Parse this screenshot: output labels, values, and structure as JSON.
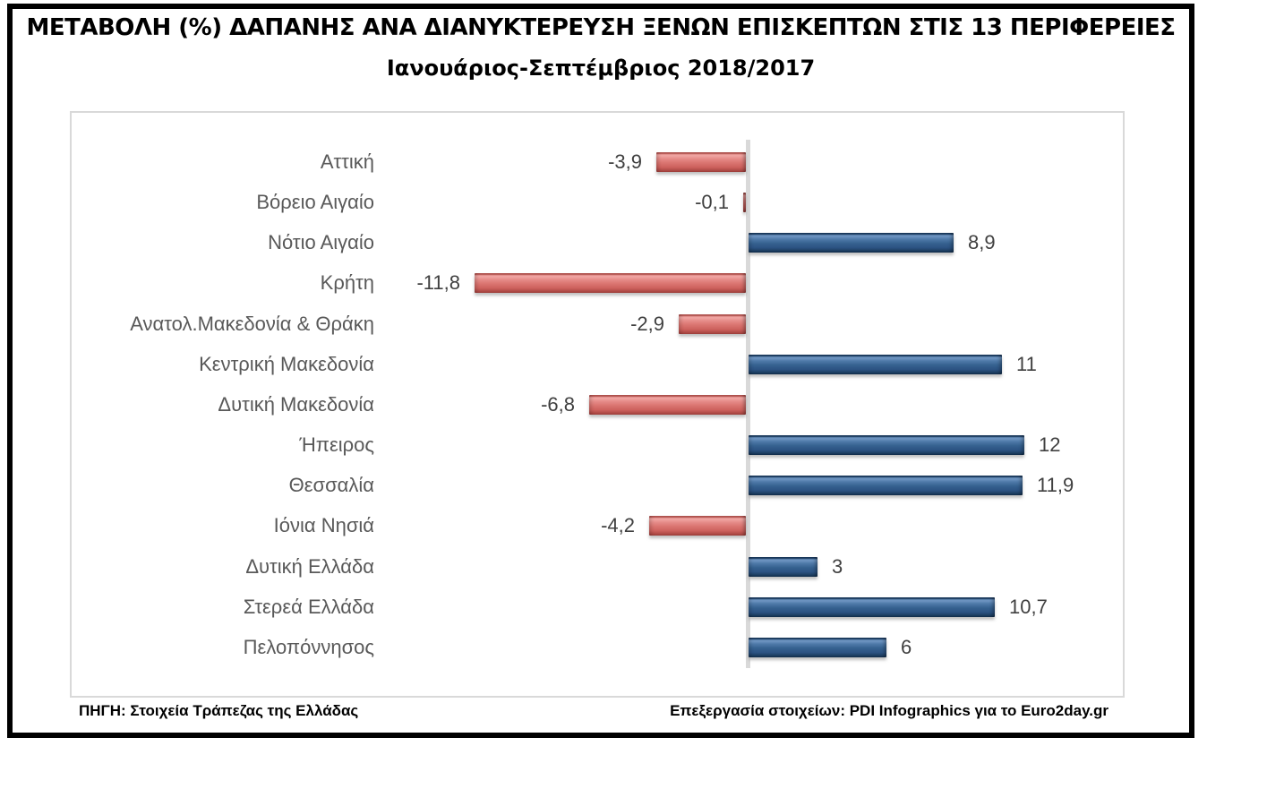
{
  "header": {
    "title": "ΜΕΤΑΒΟΛΗ (%) ΔΑΠΑΝΗΣ ΑΝΑ ΔΙΑΝΥΚΤΕΡΕΥΣΗ ΞΕΝΩΝ ΕΠΙΣΚΕΠΤΩΝ ΣΤΙΣ 13 ΠΕΡΙΦΕΡΕΙΕΣ",
    "subtitle": "Ιανουάριος-Σεπτέμβριος 2018/2017"
  },
  "chart_data": {
    "type": "bar",
    "orientation": "horizontal",
    "title": "ΜΕΤΑΒΟΛΗ (%) ΔΑΠΑΝΗΣ ΑΝΑ ΔΙΑΝΥΚΤΕΡΕΥΣΗ ΞΕΝΩΝ ΕΠΙΣΚΕΠΤΩΝ ΣΤΙΣ 13 ΠΕΡΙΦΕΡΕΙΕΣ",
    "subtitle": "Ιανουάριος-Σεπτέμβριος 2018/2017",
    "categories": [
      "Αττική",
      "Βόρειο Αιγαίο",
      "Νότιο Αιγαίο",
      "Κρήτη",
      "Ανατολ.Μακεδονία & Θράκη",
      "Κεντρική Μακεδονία",
      "Δυτική Μακεδονία",
      "Ήπειρος",
      "Θεσσαλία",
      "Ιόνια Νησιά",
      "Δυτική Ελλάδα",
      "Στερεά Ελλάδα",
      "Πελοπόννησος"
    ],
    "values": [
      -3.9,
      -0.1,
      8.9,
      -11.8,
      -2.9,
      11,
      -6.8,
      12,
      11.9,
      -4.2,
      3,
      10.7,
      6
    ],
    "value_labels": [
      "-3,9",
      "-0,1",
      "8,9",
      "-11,8",
      "-2,9",
      "11",
      "-6,8",
      "12",
      "11,9",
      "-4,2",
      "3",
      "10,7",
      "6"
    ],
    "xlim": [
      -13,
      15
    ],
    "grid": false,
    "legend": "none",
    "colors": {
      "positive_bar": "#31598C",
      "negative_bar": "#D9706D",
      "zero_axis": "#D9D9D9",
      "category_label": "#595959",
      "value_label": "#404040",
      "frame_border": "#000000",
      "plot_border": "#D9D9D9"
    }
  },
  "footer": {
    "source": "ΠΗΓΗ: Στοιχεία Τράπεζας της Ελλάδας",
    "credit": "Επεξεργασία στοιχείων: PDI Infographics για το Euro2day.gr"
  }
}
